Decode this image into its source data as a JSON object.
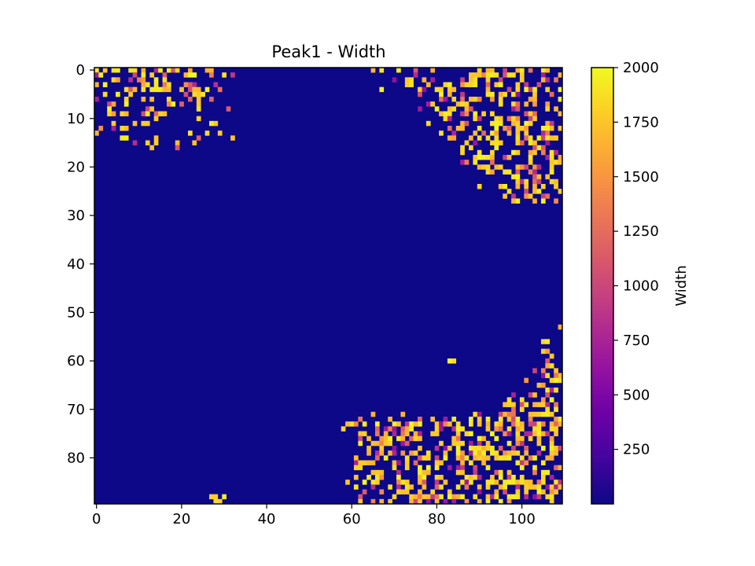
{
  "chart_data": {
    "type": "heatmap",
    "title": "Peak1 - Width",
    "xlabel": "",
    "ylabel": "",
    "grid": false,
    "colormap": "plasma",
    "colormap_stops": [
      "#0d0887",
      "#47039f",
      "#7301a8",
      "#9c179e",
      "#bd3786",
      "#d8576b",
      "#ed7953",
      "#fb9f3a",
      "#fdca26",
      "#f0f921"
    ],
    "background_value": 0,
    "n_cols": 110,
    "n_rows": 90,
    "xlim": [
      -0.5,
      109.5
    ],
    "ylim": [
      89.5,
      -0.5
    ],
    "x_ticks": [
      0,
      20,
      40,
      60,
      80,
      100
    ],
    "x_tick_labels": [
      "0",
      "20",
      "40",
      "60",
      "80",
      "100"
    ],
    "y_ticks": [
      0,
      10,
      20,
      30,
      40,
      50,
      60,
      70,
      80
    ],
    "y_tick_labels": [
      "0",
      "10",
      "20",
      "30",
      "40",
      "50",
      "60",
      "70",
      "80"
    ],
    "colorbar": {
      "label": "Width",
      "vmin": 0,
      "vmax": 2000,
      "ticks": [
        250,
        500,
        750,
        1000,
        1250,
        1500,
        1750,
        2000
      ],
      "tick_labels": [
        "250",
        "500",
        "750",
        "1000",
        "1250",
        "1500",
        "1750",
        "2000"
      ]
    },
    "regions": [
      {
        "name": "top-left-cluster",
        "col_range": [
          0,
          34
        ],
        "row_range": [
          0,
          16
        ],
        "density": 0.45,
        "value_range": [
          600,
          2000
        ]
      },
      {
        "name": "top-right-cluster",
        "col_range": [
          62,
          109
        ],
        "row_range": [
          0,
          27
        ],
        "density": 0.42,
        "value_range": [
          600,
          2000
        ]
      },
      {
        "name": "right-middle-cluster",
        "col_range": [
          90,
          109
        ],
        "row_range": [
          44,
          75
        ],
        "density": 0.38,
        "value_range": [
          600,
          2000
        ]
      },
      {
        "name": "bottom-right-cluster",
        "col_range": [
          57,
          109
        ],
        "row_range": [
          71,
          89
        ],
        "density": 0.42,
        "value_range": [
          600,
          2000
        ]
      },
      {
        "name": "bottom-edge-speck",
        "col_range": [
          27,
          31
        ],
        "row_range": [
          88,
          89
        ],
        "density": 0.6,
        "value_range": [
          1500,
          2000
        ]
      },
      {
        "name": "isolated-speck",
        "col_range": [
          83,
          84
        ],
        "row_range": [
          60,
          60
        ],
        "density": 1.0,
        "value_range": [
          1950,
          2000
        ]
      }
    ]
  }
}
